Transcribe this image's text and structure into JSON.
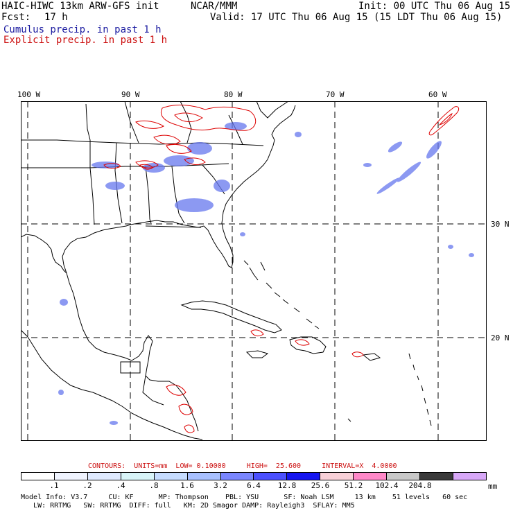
{
  "header": {
    "model": "HAIC-HIWC 13km ARW-GFS init",
    "org": "NCAR/MMM",
    "init": "Init: 00 UTC Thu 06 Aug 15",
    "fcst_label": "Fcst:",
    "fcst_value": "17 h",
    "valid": "Valid: 17 UTC Thu 06 Aug 15 (15 LDT Thu 06 Aug 15)",
    "cumulus": "Cumulus precip. in past 1 h",
    "explicit": "Explicit precip. in past 1 h"
  },
  "map": {
    "lon_labels": [
      "100 W",
      "90 W",
      "80 W",
      "70 W",
      "60 W"
    ],
    "lat_labels": [
      "30 N",
      "20 N"
    ],
    "colors": {
      "coast": "#000000",
      "grid": "#000000",
      "cumulus": "#6677ee",
      "explicit": "#dd0000"
    }
  },
  "footer": {
    "contours_text": "CONTOURS:  UNITS=mm  LOW= 0.10000     HIGH=  25.600     INTERVAL=X  4.0000",
    "legend_values": [
      ".1",
      ".2",
      ".4",
      ".8",
      "1.6",
      "3.2",
      "6.4",
      "12.8",
      "25.6",
      "51.2",
      "102.4",
      "204.8"
    ],
    "legend_unit": "mm",
    "legend_colors": [
      "#ffffff",
      "#f0f4ff",
      "#dfeaff",
      "#d8f4f8",
      "#c6dcff",
      "#a8c0ff",
      "#7a86ff",
      "#4b50ff",
      "#1515f0",
      "#f8d0d8",
      "#ff88c8",
      "#c8c8c8",
      "#3a3a3a",
      "#d8a8f8"
    ],
    "model_info_1": "Model Info: V3.7     CU: KF      MP: Thompson    PBL: YSU      SF: Noah LSM     13 km    51 levels   60 sec",
    "model_info_2": "   LW: RRTMG   SW: RRTMG  DIFF: full   KM: 2D Smagor DAMP: Rayleigh3  SFLAY: MM5"
  }
}
